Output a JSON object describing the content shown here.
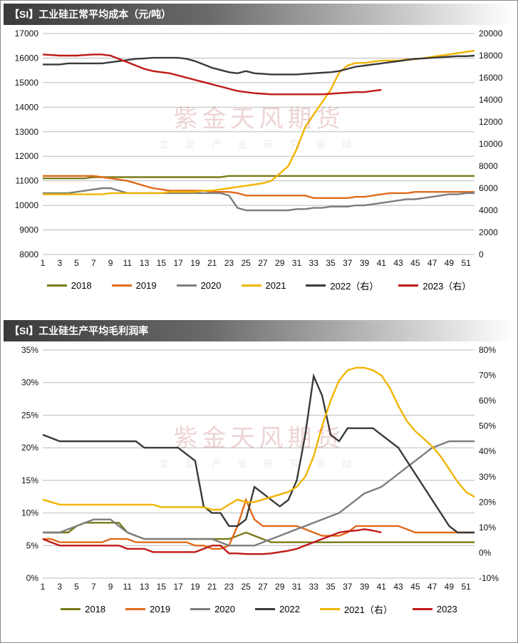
{
  "watermark": {
    "main": "紫金天风期货",
    "sub": "立 足 产 业  研 究 驱 动"
  },
  "chart1": {
    "title": "【SI】工业硅正常平均成本（元/吨）",
    "type": "line",
    "background_color": "#ffffff",
    "grid_color": "#bbbbbb",
    "title_fontsize": 14,
    "label_fontsize": 12,
    "line_width": 2.4,
    "x": {
      "min": 1,
      "max": 52,
      "tick_step": 2,
      "first_tick": 1
    },
    "yL": {
      "min": 8000,
      "max": 17000,
      "tick_step": 1000
    },
    "yR": {
      "min": 0,
      "max": 20000,
      "tick_step": 2000
    },
    "series": [
      {
        "name": "2018",
        "axis": "L",
        "color": "#7a7a1a",
        "legend": "2018",
        "values": [
          11100,
          11100,
          11100,
          11100,
          11100,
          11100,
          11150,
          11150,
          11150,
          11150,
          11150,
          11150,
          11150,
          11150,
          11150,
          11150,
          11150,
          11150,
          11150,
          11150,
          11150,
          11150,
          11200,
          11200,
          11200,
          11200,
          11200,
          11200,
          11200,
          11200,
          11200,
          11200,
          11200,
          11200,
          11200,
          11200,
          11200,
          11200,
          11200,
          11200,
          11200,
          11200,
          11200,
          11200,
          11200,
          11200,
          11200,
          11200,
          11200,
          11200,
          11200,
          11200
        ]
      },
      {
        "name": "2019",
        "axis": "L",
        "color": "#e06a1b",
        "legend": "2019",
        "values": [
          11200,
          11200,
          11200,
          11200,
          11200,
          11200,
          11200,
          11150,
          11100,
          11050,
          11000,
          10900,
          10800,
          10700,
          10650,
          10600,
          10600,
          10600,
          10600,
          10600,
          10550,
          10550,
          10550,
          10500,
          10400,
          10400,
          10400,
          10400,
          10400,
          10400,
          10400,
          10400,
          10300,
          10300,
          10300,
          10300,
          10300,
          10350,
          10350,
          10400,
          10450,
          10500,
          10500,
          10500,
          10550,
          10550,
          10550,
          10550,
          10550,
          10550,
          10550,
          10550
        ]
      },
      {
        "name": "2020",
        "axis": "L",
        "color": "#7d7d7d",
        "legend": "2020",
        "values": [
          10500,
          10500,
          10500,
          10500,
          10550,
          10600,
          10650,
          10700,
          10700,
          10600,
          10500,
          10500,
          10500,
          10500,
          10500,
          10500,
          10500,
          10500,
          10500,
          10500,
          10500,
          10500,
          10400,
          9900,
          9800,
          9800,
          9800,
          9800,
          9800,
          9800,
          9850,
          9850,
          9900,
          9900,
          9950,
          9950,
          9950,
          10000,
          10000,
          10050,
          10100,
          10150,
          10200,
          10250,
          10250,
          10300,
          10350,
          10400,
          10450,
          10450,
          10500,
          10500
        ]
      },
      {
        "name": "2021",
        "axis": "L",
        "color": "#f0b400",
        "legend": "2021",
        "values": [
          10450,
          10450,
          10450,
          10450,
          10450,
          10450,
          10450,
          10450,
          10500,
          10500,
          10500,
          10500,
          10500,
          10500,
          10500,
          10550,
          10550,
          10550,
          10550,
          10600,
          10600,
          10650,
          10700,
          10750,
          10800,
          10850,
          10900,
          11000,
          11300,
          11600,
          12300,
          13200,
          13700,
          14200,
          14700,
          15400,
          15700,
          15800,
          15800,
          15850,
          15900,
          15900,
          15900,
          15950,
          15950,
          16000,
          16050,
          16100,
          16150,
          16200,
          16250,
          16300
        ]
      },
      {
        "name": "2022（右）",
        "axis": "R",
        "color": "#3a3a3a",
        "legend": "2022（右）",
        "values": [
          17200,
          17200,
          17200,
          17300,
          17300,
          17300,
          17300,
          17300,
          17400,
          17500,
          17600,
          17700,
          17750,
          17800,
          17800,
          17800,
          17800,
          17700,
          17500,
          17200,
          16900,
          16700,
          16500,
          16400,
          16600,
          16400,
          16350,
          16300,
          16300,
          16300,
          16300,
          16350,
          16400,
          16450,
          16500,
          16600,
          16800,
          17000,
          17100,
          17200,
          17300,
          17400,
          17500,
          17600,
          17700,
          17750,
          17800,
          17850,
          17900,
          17950,
          17950,
          18000
        ]
      },
      {
        "name": "2023（右）",
        "axis": "R",
        "color": "#c01818",
        "legend": "2023（右）",
        "values": [
          18100,
          18050,
          18000,
          18000,
          18000,
          18050,
          18100,
          18100,
          18000,
          17700,
          17400,
          17100,
          16800,
          16600,
          16500,
          16400,
          16200,
          16000,
          15800,
          15600,
          15400,
          15200,
          15000,
          14800,
          14700,
          14600,
          14550,
          14500,
          14500,
          14500,
          14500,
          14500,
          14500,
          14500,
          14550,
          14600,
          14650,
          14700,
          14700,
          14800,
          14900
        ]
      }
    ]
  },
  "chart2": {
    "title": "【SI】工业硅生产平均毛利润率",
    "type": "line",
    "background_color": "#ffffff",
    "grid_color": "#bbbbbb",
    "title_fontsize": 14,
    "label_fontsize": 12,
    "line_width": 2.4,
    "x": {
      "min": 1,
      "max": 52,
      "tick_step": 2,
      "first_tick": 1
    },
    "yL": {
      "min": 0,
      "max": 35,
      "tick_step": 5,
      "suffix": "%"
    },
    "yR": {
      "min": -10,
      "max": 80,
      "tick_step": 10,
      "suffix": "%"
    },
    "series": [
      {
        "name": "2018",
        "axis": "L",
        "color": "#7a7a1a",
        "legend": "2018",
        "values": [
          7,
          7,
          7,
          7,
          8,
          8.5,
          8.5,
          8.5,
          8.5,
          8.5,
          7,
          6.5,
          6,
          6,
          6,
          6,
          6,
          6,
          6,
          6,
          6,
          6,
          6,
          6.5,
          7,
          6.5,
          6,
          5.5,
          5.5,
          5.5,
          5.5,
          5.5,
          5.5,
          5.5,
          5.5,
          5.5,
          5.5,
          5.5,
          5.5,
          5.5,
          5.5,
          5.5,
          5.5,
          5.5,
          5.5,
          5.5,
          5.5,
          5.5,
          5.5,
          5.5,
          5.5,
          5.5
        ]
      },
      {
        "name": "2019",
        "axis": "L",
        "color": "#e06a1b",
        "legend": "2019",
        "values": [
          6,
          6,
          5.5,
          5.5,
          5.5,
          5.5,
          5.5,
          5.5,
          6,
          6,
          6,
          5.5,
          5.5,
          5.5,
          5.5,
          5.5,
          5.5,
          5.5,
          5,
          5,
          4.5,
          4.5,
          5,
          8,
          12,
          9,
          8,
          8,
          8,
          8,
          8,
          7.5,
          7,
          6.5,
          6.5,
          6.5,
          7,
          8,
          8,
          8,
          8,
          8,
          8,
          7.5,
          7,
          7,
          7,
          7,
          7,
          7,
          7,
          7
        ]
      },
      {
        "name": "2020",
        "axis": "L",
        "color": "#7d7d7d",
        "legend": "2020",
        "values": [
          7,
          7,
          7,
          7.5,
          8,
          8.5,
          9,
          9,
          9,
          8,
          7,
          6.5,
          6,
          6,
          6,
          6,
          6,
          6,
          6,
          6,
          6,
          5.5,
          5,
          5,
          5,
          5,
          5.5,
          6,
          6.5,
          7,
          7.5,
          8,
          8.5,
          9,
          9.5,
          10,
          11,
          12,
          13,
          13.5,
          14,
          15,
          16,
          17,
          18,
          19,
          20,
          20.5,
          21,
          21,
          21,
          21
        ]
      },
      {
        "name": "2022",
        "axis": "L",
        "color": "#3a3a3a",
        "legend": "2022",
        "values": [
          22,
          21.5,
          21,
          21,
          21,
          21,
          21,
          21,
          21,
          21,
          21,
          21,
          20,
          20,
          20,
          20,
          20,
          19,
          18,
          11,
          10,
          10,
          8,
          8,
          9,
          14,
          13,
          12,
          11,
          12,
          15,
          22,
          31,
          28,
          22,
          21,
          23,
          23,
          23,
          23,
          22,
          21,
          20,
          18,
          16,
          14,
          12,
          10,
          8,
          7,
          7,
          7
        ]
      },
      {
        "name": "2021（右）",
        "axis": "R",
        "color": "#f0b400",
        "legend": "2021（右）",
        "values": [
          21,
          20,
          19,
          19,
          19,
          19,
          19,
          19,
          19,
          19,
          19,
          19,
          19,
          19,
          18,
          18,
          18,
          18,
          18,
          18,
          17,
          17,
          19,
          21,
          20,
          20,
          21,
          22,
          23,
          24,
          26,
          30,
          38,
          50,
          60,
          68,
          72,
          73,
          73,
          72,
          70,
          65,
          58,
          52,
          48,
          45,
          42,
          38,
          33,
          28,
          24,
          22
        ]
      },
      {
        "name": "2023",
        "axis": "L",
        "color": "#c01818",
        "legend": "2023",
        "values": [
          6,
          5.5,
          5,
          5,
          5,
          5,
          5,
          5,
          5,
          5,
          4.5,
          4.5,
          4.5,
          4,
          4,
          4,
          4,
          4,
          4,
          4.5,
          5,
          5,
          3.8,
          3.8,
          3.7,
          3.7,
          3.7,
          3.8,
          4,
          4.2,
          4.5,
          5,
          5.5,
          6,
          6.5,
          7,
          7.2,
          7.3,
          7.5,
          7.3,
          7
        ]
      }
    ]
  }
}
